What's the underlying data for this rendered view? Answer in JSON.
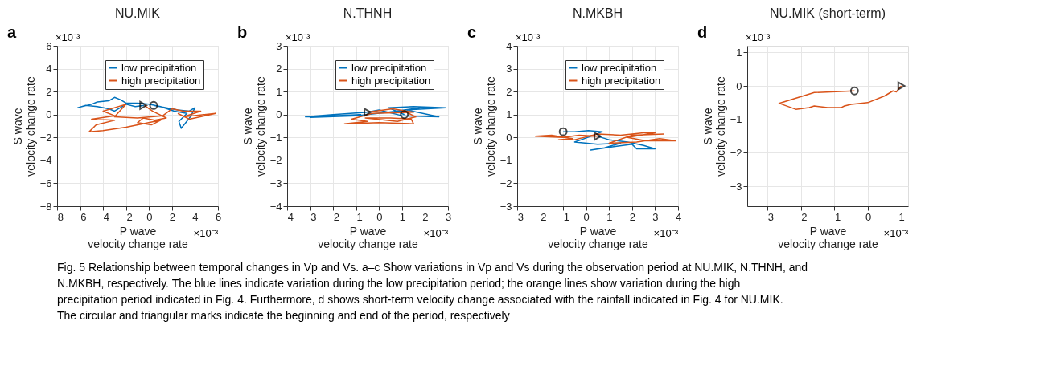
{
  "chart_data": [
    {
      "type": "line",
      "title": "NU.MIK",
      "xlabel": "P wave\nvelocity change rate",
      "ylabel": "S wave\nvelocity change rate",
      "xlim": [
        -8,
        6
      ],
      "ylim": [
        -8,
        6
      ],
      "xticks": [
        -8,
        -6,
        -4,
        -2,
        0,
        2,
        4,
        6
      ],
      "yticks": [
        -8,
        -6,
        -4,
        -2,
        0,
        2,
        4,
        6
      ],
      "grid": true,
      "legend": "top right",
      "annotations": [
        "a",
        "×10⁻³",
        "×10⁻³",
        "Fig. 5 Relationship between temporal changes in Vp and Vs. a–c Show variations in Vp and Vs during the observation period at NU.MIK, N.THNH, and N.MKBH, respectively. The blue lines indicate variation during the low precipitation period; the orange lines show variation during the high precipitation period indicated in Fig. 4. Furthermore, d shows short-term velocity change associated with the rainfall indicated in Fig. 4 for NU.MIK. The circular and triangular marks indicate the beginning and end of the period, respectively"
      ],
      "series": [
        {
          "name": "low precipitation",
          "color": "#0072bd",
          "x": [
            0.4,
            1.5,
            2.5,
            3.5,
            4,
            3.6,
            3.2,
            2.8,
            2.6,
            3.3,
            2.2,
            1,
            0,
            -1,
            -2,
            -2.5,
            -3,
            -3.5,
            -4.5,
            -5,
            -6.2,
            -5.5,
            -4.5,
            -3.5,
            -3,
            -2,
            -1.2,
            -0.4
          ],
          "values": [
            0.8,
            0.6,
            0.4,
            0.3,
            0.6,
            -0.2,
            -0.7,
            -1.2,
            -0.6,
            0.1,
            0.3,
            0.7,
            0.9,
            1.0,
            1.0,
            1.3,
            1.5,
            1.2,
            1.1,
            0.9,
            0.6,
            0.8,
            0.7,
            0.5,
            0.3,
            0.9,
            0.7,
            0.8
          ]
        },
        {
          "name": "high precipitation",
          "color": "#d95319",
          "x": [
            -0.4,
            0.3,
            1.5,
            0.5,
            -0.5,
            -1,
            0.2,
            1,
            -2,
            -4,
            -5.2,
            -4.6,
            -3,
            -5,
            -3,
            -4,
            -2,
            -3,
            -1,
            1.2,
            2,
            3,
            4.5,
            3,
            5.8,
            3.5,
            2.5
          ],
          "values": [
            0.8,
            0.3,
            -0.3,
            -0.5,
            -0.3,
            -0.7,
            -0.9,
            -0.5,
            -1.1,
            -1.4,
            -1.5,
            -0.9,
            -0.5,
            -0.4,
            -0.1,
            0.3,
            0.9,
            -0.2,
            -0.3,
            -0.1,
            0.5,
            0.3,
            0.3,
            -0.2,
            0.1,
            -0.4,
            0.1
          ]
        },
        {
          "type": "scatter",
          "marker": "circle",
          "color": "#000000",
          "x": [
            0.4
          ],
          "values": [
            0.8
          ]
        },
        {
          "type": "scatter",
          "marker": "triangle",
          "color": "#000000",
          "x": [
            -0.5
          ],
          "values": [
            0.8
          ]
        }
      ]
    },
    {
      "type": "line",
      "title": "N.THNH",
      "xlabel": "P wave\nvelocity change rate",
      "ylabel": "S wave\nvelocity change rate",
      "xlim": [
        -4,
        3
      ],
      "ylim": [
        -4,
        3
      ],
      "xticks": [
        -4,
        -3,
        -2,
        -1,
        0,
        1,
        2,
        3
      ],
      "yticks": [
        -4,
        -3,
        -2,
        -1,
        0,
        1,
        2,
        3
      ],
      "grid": true,
      "legend": "top right",
      "annotations": [
        "b",
        "×10⁻³",
        "×10⁻³"
      ],
      "series": [
        {
          "name": "low precipitation",
          "color": "#0072bd",
          "x": [
            1.1,
            0.4,
            1.5,
            2.9,
            1.2,
            2.6,
            1,
            0,
            -0.5,
            -2,
            -3.2,
            -2,
            -0.8,
            -3,
            -1,
            0.4,
            1.8,
            0.8,
            1.3
          ],
          "values": [
            0,
            0.3,
            0.35,
            0.3,
            0.2,
            -0.1,
            -0.05,
            0.2,
            0.1,
            0,
            -0.1,
            -0.05,
            0,
            -0.12,
            -0.05,
            0.1,
            0.3,
            0.15,
            0.1
          ]
        },
        {
          "name": "high precipitation",
          "color": "#d95319",
          "x": [
            -0.5,
            0.6,
            1.5,
            -0.3,
            -1.2,
            -0.5,
            -1.5,
            0,
            1.5,
            1.4,
            0.5,
            -0.6,
            0.8,
            1.6,
            1.2
          ],
          "values": [
            0.1,
            0.25,
            0.1,
            0.05,
            -0.2,
            -0.3,
            -0.4,
            -0.35,
            -0.4,
            -0.2,
            -0.15,
            -0.15,
            -0.3,
            -0.1,
            0.1
          ]
        },
        {
          "type": "scatter",
          "marker": "circle",
          "color": "#000000",
          "x": [
            1.1
          ],
          "values": [
            0
          ]
        },
        {
          "type": "scatter",
          "marker": "triangle",
          "color": "#000000",
          "x": [
            -0.5
          ],
          "values": [
            0.1
          ]
        }
      ]
    },
    {
      "type": "line",
      "title": "N.MKBH",
      "xlabel": "P wave\nvelocity change rate",
      "ylabel": "S wave\nvelocity change rate",
      "xlim": [
        -3,
        4
      ],
      "ylim": [
        -3,
        4
      ],
      "xticks": [
        -3,
        -2,
        -1,
        0,
        1,
        2,
        3,
        4
      ],
      "yticks": [
        -3,
        -2,
        -1,
        0,
        1,
        2,
        3,
        4
      ],
      "grid": true,
      "legend": "top right",
      "annotations": [
        "c",
        "×10⁻³",
        "×10⁻³"
      ],
      "series": [
        {
          "name": "low precipitation",
          "color": "#0072bd",
          "x": [
            -1,
            -0.5,
            0.1,
            0.7,
            0.2,
            -0.5,
            0.5,
            1.5,
            0.8,
            0.2,
            1.2,
            2,
            2.2,
            3,
            2.5,
            1.8,
            1,
            0.5
          ],
          "values": [
            0.25,
            0.25,
            0.3,
            0.25,
            0.05,
            -0.2,
            -0.3,
            -0.25,
            -0.45,
            -0.55,
            -0.4,
            -0.3,
            -0.5,
            -0.5,
            -0.35,
            -0.2,
            -0.1,
            0.05
          ]
        },
        {
          "name": "high precipitation",
          "color": "#d95319",
          "x": [
            0.5,
            -0.3,
            -1,
            -2.2,
            -1.5,
            -0.6,
            -1.2,
            -0.5,
            0.5,
            1.5,
            2.5,
            3,
            1.8,
            2.6,
            3.9,
            3.2,
            2.2,
            1,
            2,
            3.4
          ],
          "values": [
            0.05,
            0.1,
            0,
            0.05,
            0.1,
            -0.05,
            -0.1,
            -0.1,
            0.15,
            0.1,
            0.2,
            0.2,
            0,
            -0.15,
            -0.15,
            -0.05,
            -0.2,
            -0.25,
            0.1,
            0.15
          ]
        },
        {
          "type": "scatter",
          "marker": "circle",
          "color": "#000000",
          "x": [
            -1
          ],
          "values": [
            0.25
          ]
        },
        {
          "type": "scatter",
          "marker": "triangle",
          "color": "#000000",
          "x": [
            0.5
          ],
          "values": [
            0.05
          ]
        }
      ]
    },
    {
      "type": "line",
      "title": "NU.MIK (short-term)",
      "xlabel": "P wave\nvelocity change rate",
      "ylabel": "S wave\nvelocity change rate",
      "xlim": [
        -3.6,
        1.2
      ],
      "ylim": [
        -3.6,
        1.2
      ],
      "xticks": [
        -3,
        -2,
        -1,
        0,
        1
      ],
      "yticks": [
        -3,
        -2,
        -1,
        0,
        1
      ],
      "grid": true,
      "annotations": [
        "d",
        "×10⁻³",
        "×10⁻³"
      ],
      "series": [
        {
          "color": "#d95319",
          "x": [
            -0.4,
            -1.6,
            -2.65,
            -2.15,
            -1.75,
            -1.6,
            -1.2,
            -0.8,
            -0.7,
            -0.5,
            0,
            0.5,
            0.75,
            0.85,
            0.95,
            1.0
          ],
          "values": [
            -0.15,
            -0.2,
            -0.52,
            -0.7,
            -0.65,
            -0.6,
            -0.65,
            -0.65,
            -0.6,
            -0.55,
            -0.5,
            -0.3,
            -0.15,
            -0.18,
            -0.05,
            0
          ]
        },
        {
          "type": "scatter",
          "marker": "circle",
          "color": "#000000",
          "x": [
            -0.4
          ],
          "values": [
            -0.15
          ]
        },
        {
          "type": "scatter",
          "marker": "triangle",
          "color": "#000000",
          "x": [
            1.0
          ],
          "values": [
            0
          ]
        }
      ]
    }
  ]
}
